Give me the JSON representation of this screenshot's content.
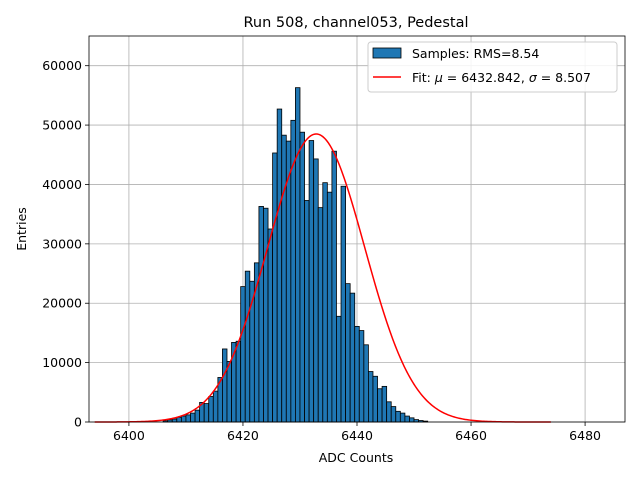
{
  "chart_data": {
    "type": "bar",
    "title": "Run 508, channel053, Pedestal",
    "xlabel": "ADC Counts",
    "ylabel": "Entries",
    "xlim": [
      6393,
      6487
    ],
    "ylim": [
      0,
      65000
    ],
    "xticks": [
      6400,
      6420,
      6440,
      6460,
      6480
    ],
    "yticks": [
      0,
      10000,
      20000,
      30000,
      40000,
      50000,
      60000
    ],
    "grid": true,
    "legend_position": "top-right",
    "colors": {
      "bars": "#1f77b4",
      "bar_edge": "#000000",
      "fit": "#ff0000",
      "grid": "#b0b0b0"
    },
    "histogram": {
      "name": "Samples: RMS=8.54",
      "bin_start": 6406,
      "bin_width": 0.8,
      "counts": [
        200,
        350,
        500,
        800,
        1000,
        1200,
        1500,
        2000,
        3300,
        3100,
        4300,
        5200,
        7500,
        12300,
        10200,
        13400,
        13600,
        22800,
        25400,
        23700,
        26800,
        36300,
        36000,
        32500,
        45300,
        52700,
        48300,
        47300,
        50800,
        56300,
        48800,
        37300,
        47400,
        44300,
        36100,
        40300,
        38700,
        45600,
        17800,
        39700,
        23300,
        21700,
        16100,
        15400,
        13000,
        8500,
        7700,
        5600,
        6000,
        3400,
        2600,
        1800,
        1500,
        1000,
        700,
        400,
        250,
        150
      ]
    },
    "fit": {
      "label": "Fit: μ = 6432.842, σ = 8.507",
      "label_prefix": "Fit: ",
      "mu_symbol": "μ",
      "mid": " = 6432.842, ",
      "sigma_symbol": "σ",
      "suffix": " = 8.507",
      "mu": 6432.842,
      "sigma": 8.507,
      "amplitude": 48500,
      "x_range": [
        6394,
        6474
      ]
    }
  }
}
